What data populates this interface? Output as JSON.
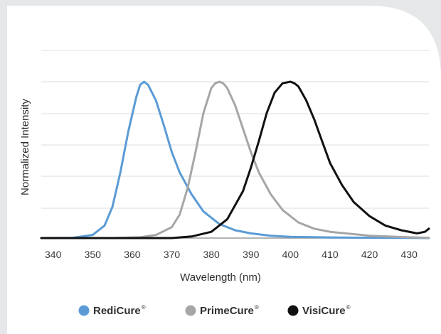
{
  "chart_data": {
    "type": "line",
    "title": "",
    "xlabel": "Wavelength (nm)",
    "ylabel": "Normalized Intensity",
    "xlim": [
      337,
      435
    ],
    "ylim": [
      0,
      1.0
    ],
    "x_ticks": [
      "340",
      "350",
      "360",
      "370",
      "380",
      "390",
      "400",
      "410",
      "420",
      "430"
    ],
    "grid": true,
    "legend_position": "bottom",
    "series": [
      {
        "name": "RediCure",
        "color": "#5b9bd5",
        "x": [
          337,
          345,
          350,
          353,
          355,
          357,
          359,
          361,
          362,
          363,
          364,
          366,
          368,
          370,
          372,
          375,
          378,
          382,
          386,
          390,
          395,
          400,
          410,
          420,
          430,
          435
        ],
        "y": [
          0.0,
          0.002,
          0.02,
          0.08,
          0.2,
          0.42,
          0.68,
          0.9,
          0.98,
          1.0,
          0.98,
          0.88,
          0.72,
          0.55,
          0.42,
          0.28,
          0.17,
          0.09,
          0.05,
          0.03,
          0.015,
          0.008,
          0.004,
          0.002,
          0.001,
          0.0
        ]
      },
      {
        "name": "PrimeCure",
        "color": "#a6a6a6",
        "x": [
          337,
          355,
          362,
          366,
          370,
          372,
          374,
          376,
          378,
          380,
          381,
          382,
          383,
          384,
          386,
          388,
          390,
          392,
          395,
          398,
          402,
          406,
          410,
          420,
          430,
          435
        ],
        "y": [
          0.0,
          0.0,
          0.005,
          0.02,
          0.07,
          0.15,
          0.32,
          0.55,
          0.8,
          0.96,
          0.99,
          1.0,
          0.99,
          0.96,
          0.85,
          0.7,
          0.55,
          0.42,
          0.28,
          0.18,
          0.1,
          0.06,
          0.04,
          0.015,
          0.005,
          0.002
        ]
      },
      {
        "name": "VisiCure",
        "color": "#111111",
        "x": [
          337,
          370,
          375,
          380,
          384,
          388,
          390,
          392,
          394,
          396,
          398,
          400,
          401,
          402,
          404,
          406,
          408,
          410,
          413,
          416,
          420,
          424,
          428,
          432,
          434,
          435
        ],
        "y": [
          0.0,
          0.0,
          0.01,
          0.04,
          0.12,
          0.3,
          0.45,
          0.62,
          0.8,
          0.93,
          0.99,
          1.0,
          0.99,
          0.97,
          0.88,
          0.76,
          0.62,
          0.48,
          0.34,
          0.23,
          0.14,
          0.08,
          0.05,
          0.03,
          0.04,
          0.06
        ]
      }
    ]
  },
  "legend": {
    "items": [
      {
        "label": "RediCure",
        "mark": "®",
        "color": "#5b9bd5"
      },
      {
        "label": "PrimeCure",
        "mark": "®",
        "color": "#a6a6a6"
      },
      {
        "label": "VisiCure",
        "mark": "®",
        "color": "#111111"
      }
    ]
  },
  "colors": {
    "background": "#e6e7e8",
    "card": "#ffffff",
    "grid": "#dcdcdc"
  }
}
